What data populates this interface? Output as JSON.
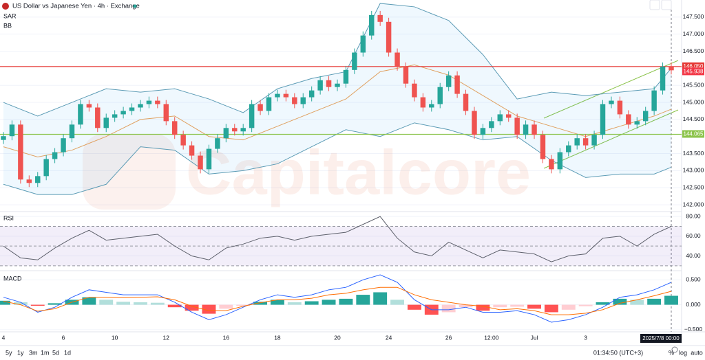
{
  "header": {
    "title": "US Dollar vs Japanese Yen · 4h · Exchange"
  },
  "watermark": "Capitalcore",
  "chart_data": [
    {
      "type": "candlestick",
      "indicators": [
        "SAR",
        "BB"
      ],
      "up_color": "#26a69a",
      "down_color": "#ef5350",
      "open": [
        143.9,
        144.01,
        144.35,
        142.74,
        142.64,
        142.84,
        143.34,
        143.54,
        143.95,
        144.35,
        144.95,
        144.85,
        144.25,
        144.55,
        144.65,
        144.75,
        144.85,
        144.95,
        145.05,
        144.95,
        144.45,
        144.05,
        143.74,
        143.44,
        143.04,
        143.64,
        143.95,
        144.25,
        144.15,
        144.25,
        144.95,
        144.75,
        145.15,
        145.25,
        145.15,
        144.95,
        145.15,
        145.35,
        145.65,
        145.45,
        145.55,
        145.95,
        146.46,
        146.96,
        147.56,
        147.36,
        146.46,
        146.05,
        145.55,
        145.15,
        144.85,
        144.95,
        145.45,
        145.79,
        145.25,
        144.75,
        144.05,
        144.25,
        144.45,
        144.65,
        144.55,
        144.05,
        144.35,
        144.05,
        143.34,
        143.04,
        143.54,
        143.74,
        143.95,
        143.74,
        144.05,
        144.95,
        145.05,
        144.65,
        144.35,
        144.45,
        144.75,
        145.35,
        146.05
      ],
      "high": [
        144.13,
        144.47,
        144.47,
        142.86,
        142.96,
        143.46,
        143.66,
        144.07,
        144.47,
        145.07,
        145.07,
        144.97,
        144.67,
        144.77,
        144.87,
        144.97,
        145.07,
        145.17,
        145.17,
        145.07,
        144.57,
        144.17,
        143.86,
        143.56,
        143.76,
        144.07,
        144.37,
        144.37,
        144.37,
        145.07,
        145.07,
        145.27,
        145.37,
        145.37,
        145.27,
        145.27,
        145.47,
        145.77,
        145.77,
        145.67,
        146.07,
        146.58,
        147.08,
        147.68,
        147.68,
        147.48,
        146.58,
        146.17,
        145.67,
        145.27,
        145.07,
        145.57,
        145.91,
        145.91,
        145.37,
        144.87,
        144.37,
        144.57,
        144.77,
        144.77,
        144.67,
        144.47,
        144.47,
        144.17,
        143.46,
        143.66,
        143.86,
        144.07,
        144.07,
        144.17,
        145.07,
        145.17,
        145.17,
        144.77,
        144.57,
        144.87,
        145.47,
        146.17,
        146.17
      ],
      "low": [
        143.78,
        143.89,
        142.62,
        142.52,
        142.52,
        142.72,
        143.22,
        143.42,
        143.83,
        144.23,
        144.73,
        144.13,
        144.13,
        144.43,
        144.53,
        144.63,
        144.73,
        144.83,
        144.83,
        144.33,
        143.93,
        143.62,
        143.32,
        142.92,
        142.92,
        143.52,
        143.83,
        144.03,
        144.03,
        144.13,
        144.63,
        144.63,
        145.03,
        145.03,
        144.83,
        144.83,
        145.03,
        145.23,
        145.33,
        145.33,
        145.43,
        145.83,
        146.34,
        146.84,
        147.24,
        146.34,
        145.93,
        145.43,
        145.03,
        144.73,
        144.73,
        144.83,
        145.33,
        145.13,
        144.63,
        143.93,
        143.93,
        144.13,
        144.33,
        144.43,
        143.93,
        143.93,
        143.93,
        143.22,
        142.92,
        142.92,
        143.42,
        143.62,
        143.62,
        143.62,
        143.93,
        144.83,
        144.53,
        144.23,
        144.23,
        144.33,
        144.63,
        145.23,
        145.82
      ],
      "close": [
        144.01,
        144.35,
        142.74,
        142.64,
        142.84,
        143.34,
        143.54,
        143.95,
        144.35,
        144.95,
        144.85,
        144.25,
        144.55,
        144.65,
        144.75,
        144.85,
        144.95,
        145.05,
        144.95,
        144.45,
        144.05,
        143.74,
        143.44,
        143.04,
        143.64,
        143.95,
        144.25,
        144.15,
        144.25,
        144.95,
        144.75,
        145.15,
        145.25,
        145.15,
        144.95,
        145.15,
        145.35,
        145.65,
        145.45,
        145.55,
        145.95,
        146.46,
        146.96,
        147.56,
        147.36,
        146.46,
        146.05,
        145.55,
        145.15,
        144.85,
        144.95,
        145.45,
        145.79,
        145.25,
        144.75,
        144.05,
        144.25,
        144.45,
        144.65,
        144.55,
        144.05,
        144.35,
        144.05,
        143.34,
        143.04,
        143.54,
        143.74,
        143.95,
        143.74,
        144.05,
        144.95,
        145.05,
        144.65,
        144.35,
        144.45,
        144.75,
        145.35,
        146.05,
        145.94
      ],
      "bb": {
        "x": [
          0,
          4,
          8,
          12,
          16,
          20,
          24,
          28,
          32,
          36,
          40,
          44,
          48,
          52,
          56,
          60,
          64,
          68,
          72,
          76,
          78
        ],
        "upper": [
          145.0,
          144.6,
          145.0,
          145.4,
          145.3,
          145.4,
          145.1,
          144.7,
          145.4,
          145.7,
          145.9,
          147.9,
          147.8,
          147.4,
          146.4,
          145.1,
          145.3,
          145.2,
          145.3,
          145.4,
          146.0
        ],
        "middle": [
          143.7,
          143.4,
          143.6,
          144.0,
          144.5,
          144.6,
          144.0,
          143.9,
          144.3,
          144.7,
          145.1,
          145.9,
          146.1,
          145.8,
          145.2,
          144.6,
          144.3,
          144.0,
          144.3,
          144.6,
          144.8
        ],
        "lower": [
          142.6,
          142.3,
          142.3,
          142.6,
          143.7,
          143.6,
          142.9,
          143.0,
          143.2,
          143.7,
          144.2,
          144.0,
          144.4,
          144.2,
          143.9,
          144.0,
          143.3,
          142.8,
          142.9,
          142.9,
          143.1
        ]
      },
      "price_lines": [
        {
          "value": 146.05,
          "label": "146.050",
          "color": "#e53935"
        },
        {
          "value": 145.938,
          "label": "145.938",
          "color": "#f23645"
        },
        {
          "value": 144.065,
          "label": "144.065",
          "color": "#8bc34a"
        }
      ],
      "ylim": [
        141.8,
        148.0
      ],
      "yticks": [
        {
          "value": 147.5,
          "label": "147.500"
        },
        {
          "value": 147.0,
          "label": "147.000"
        },
        {
          "value": 146.5,
          "label": "146.500"
        },
        {
          "value": 145.5,
          "label": "145.500"
        },
        {
          "value": 145.0,
          "label": "145.000"
        },
        {
          "value": 144.5,
          "label": "144.500"
        },
        {
          "value": 143.5,
          "label": "143.500"
        },
        {
          "value": 143.0,
          "label": "143.000"
        },
        {
          "value": 142.5,
          "label": "142.500"
        },
        {
          "value": 142.0,
          "label": "142.000"
        }
      ]
    },
    {
      "type": "line",
      "title": "RSI",
      "color": "#7e57c2",
      "x": [
        0,
        2,
        4,
        6,
        8,
        10,
        12,
        14,
        16,
        18,
        20,
        22,
        24,
        26,
        28,
        30,
        32,
        34,
        36,
        38,
        40,
        42,
        44,
        46,
        48,
        50,
        52,
        54,
        56,
        58,
        60,
        62,
        64,
        66,
        68,
        70,
        72,
        74,
        76,
        78
      ],
      "values": [
        50,
        38,
        36,
        48,
        58,
        66,
        56,
        58,
        60,
        62,
        50,
        40,
        36,
        48,
        52,
        58,
        60,
        56,
        60,
        62,
        64,
        72,
        80,
        58,
        44,
        40,
        54,
        46,
        38,
        46,
        44,
        42,
        34,
        40,
        42,
        58,
        60,
        50,
        62,
        70
      ],
      "levels": [
        70,
        50,
        30
      ],
      "ylim": [
        26.4,
        85
      ],
      "yticks": [
        {
          "value": 80,
          "label": "80.00"
        },
        {
          "value": 60,
          "label": "60.00"
        },
        {
          "value": 40,
          "label": "40.00"
        }
      ]
    },
    {
      "type": "macd",
      "title": "MACD",
      "x": [
        0,
        2,
        4,
        6,
        8,
        10,
        12,
        14,
        16,
        18,
        20,
        22,
        24,
        26,
        28,
        30,
        32,
        34,
        36,
        38,
        40,
        42,
        44,
        46,
        48,
        50,
        52,
        54,
        56,
        58,
        60,
        62,
        64,
        66,
        68,
        70,
        72,
        74,
        76,
        78
      ],
      "histogram": [
        0.08,
        0.05,
        -0.02,
        0.03,
        0.1,
        0.15,
        0.1,
        0.06,
        0.05,
        0.04,
        -0.05,
        -0.12,
        -0.18,
        -0.08,
        -0.02,
        0.06,
        0.1,
        0.05,
        0.07,
        0.1,
        0.12,
        0.2,
        0.25,
        0.1,
        -0.1,
        -0.2,
        -0.15,
        -0.05,
        -0.12,
        -0.05,
        -0.04,
        -0.08,
        -0.15,
        -0.1,
        -0.03,
        0.05,
        0.12,
        0.1,
        0.12,
        0.18
      ],
      "macd": [
        0.15,
        0.05,
        -0.15,
        -0.05,
        0.15,
        0.3,
        0.25,
        0.2,
        0.2,
        0.2,
        0.05,
        -0.15,
        -0.3,
        -0.2,
        -0.05,
        0.1,
        0.2,
        0.15,
        0.2,
        0.3,
        0.35,
        0.5,
        0.6,
        0.45,
        0.1,
        -0.1,
        -0.1,
        -0.05,
        -0.15,
        -0.15,
        -0.12,
        -0.2,
        -0.35,
        -0.3,
        -0.2,
        -0.05,
        0.15,
        0.2,
        0.3,
        0.45
      ],
      "signal": [
        0.07,
        0,
        -0.13,
        -0.08,
        0.05,
        0.15,
        0.15,
        0.14,
        0.15,
        0.16,
        0.1,
        -0.03,
        -0.12,
        -0.12,
        -0.03,
        0.04,
        0.1,
        0.1,
        0.13,
        0.2,
        0.23,
        0.3,
        0.35,
        0.35,
        0.2,
        0.1,
        0.05,
        0,
        -0.03,
        -0.1,
        -0.08,
        -0.12,
        -0.2,
        -0.2,
        -0.17,
        -0.1,
        0.03,
        0.1,
        0.18,
        0.27
      ],
      "macd_color": "#2962ff",
      "signal_color": "#ff6d00",
      "ylim": [
        -0.53,
        0.67
      ],
      "yticks": [
        {
          "value": 0.5,
          "label": "0.500"
        },
        {
          "value": 0,
          "label": "0.000"
        },
        {
          "value": -0.5,
          "label": "−0.500"
        }
      ]
    }
  ],
  "xaxis": {
    "ticks": [
      {
        "value": 0,
        "label": "4"
      },
      {
        "value": 7,
        "label": "6"
      },
      {
        "value": 13,
        "label": "10"
      },
      {
        "value": 19,
        "label": "12"
      },
      {
        "value": 26,
        "label": "16"
      },
      {
        "value": 32,
        "label": "18"
      },
      {
        "value": 39,
        "label": "20"
      },
      {
        "value": 45,
        "label": "24"
      },
      {
        "value": 52,
        "label": "26"
      },
      {
        "value": 57,
        "label": "12:00"
      },
      {
        "value": 62,
        "label": "Jul"
      },
      {
        "value": 68,
        "label": "3"
      }
    ],
    "cursor_label": "2025/7/8  00:00"
  },
  "toolbar": {
    "ranges": [
      "5y",
      "1y",
      "3m",
      "1m",
      "5d",
      "1d"
    ],
    "clock": "01:34:50 (UTC+3)",
    "options": [
      "%",
      "log",
      "auto"
    ]
  }
}
